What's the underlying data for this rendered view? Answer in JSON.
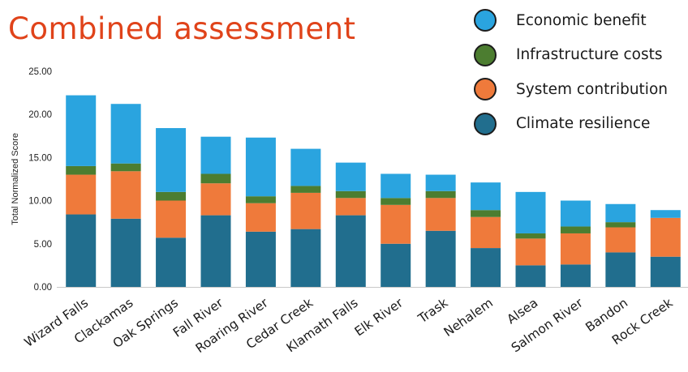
{
  "chart_data": {
    "type": "bar",
    "stacked": true,
    "title": "Combined assessment",
    "ylabel": "Total Normalized Score",
    "xlabel": "",
    "ylim": [
      0,
      25
    ],
    "yticks": [
      "0.00",
      "5.00",
      "10.00",
      "15.00",
      "20.00",
      "25.00"
    ],
    "legend_position": "top-right",
    "grid": false,
    "categories": [
      "Wizard Falls",
      "Clackamas",
      "Oak Springs",
      "Fall River",
      "Roaring River",
      "Cedar Creek",
      "Klamath Falls",
      "Elk River",
      "Trask",
      "Nehalem",
      "Alsea",
      "Salmon River",
      "Bandon",
      "Rock Creek"
    ],
    "series": [
      {
        "name": "Climate resilience",
        "color": "#216e8e",
        "values": [
          8.4,
          7.9,
          5.7,
          8.3,
          6.4,
          6.7,
          8.3,
          5.0,
          6.5,
          4.5,
          2.5,
          2.6,
          4.0,
          3.5
        ]
      },
      {
        "name": "System contribution",
        "color": "#ef7a3b",
        "values": [
          4.6,
          5.5,
          4.3,
          3.7,
          3.3,
          4.2,
          2.0,
          4.5,
          3.8,
          3.6,
          3.1,
          3.6,
          2.9,
          4.5
        ]
      },
      {
        "name": "Infrastructure costs",
        "color": "#4c7d30",
        "values": [
          1.0,
          0.9,
          1.0,
          1.1,
          0.8,
          0.8,
          0.8,
          0.8,
          0.8,
          0.8,
          0.6,
          0.8,
          0.6,
          0.0
        ]
      },
      {
        "name": "Economic benefit",
        "color": "#2aa4df",
        "values": [
          8.2,
          6.9,
          7.4,
          4.3,
          6.8,
          4.3,
          3.3,
          2.8,
          1.9,
          3.2,
          4.8,
          3.0,
          2.1,
          0.9
        ]
      }
    ]
  },
  "legend": {
    "items": [
      {
        "label": "Economic benefit",
        "color": "#2aa4df"
      },
      {
        "label": "Infrastructure costs",
        "color": "#4c7d30"
      },
      {
        "label": "System contribution",
        "color": "#ef7a3b"
      },
      {
        "label": "Climate resilience",
        "color": "#216e8e"
      }
    ]
  }
}
